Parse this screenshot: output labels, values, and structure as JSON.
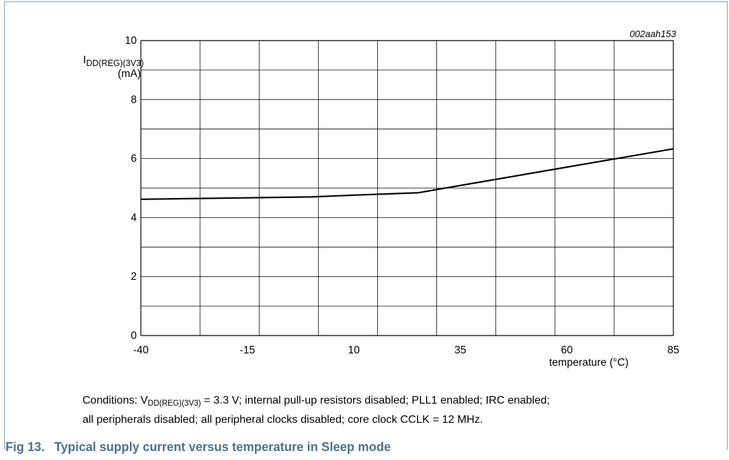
{
  "figure": {
    "number": "Fig 13.",
    "title": "Typical supply current versus temperature in Sleep mode",
    "code": "002aah153"
  },
  "conditions": {
    "prefix": "Conditions: V",
    "sub": "DD(REG)(3V3)",
    "line1_rest": " = 3.3 V; internal pull-up resistors disabled; PLL1 enabled; IRC enabled;",
    "line2": "all peripherals disabled; all peripheral clocks disabled; core clock CCLK = 12 MHz."
  },
  "chart_data": {
    "type": "line",
    "ylabel_main": "I",
    "ylabel_sub": "DD(REG)(3V3)",
    "ylabel_unit": "(mA)",
    "xlabel": "temperature (°C)",
    "xlim": [
      -40,
      85
    ],
    "ylim": [
      0,
      10
    ],
    "x_ticks": [
      "-40",
      "-15",
      "10",
      "35",
      "60",
      "85"
    ],
    "y_ticks": [
      "0",
      "2",
      "4",
      "6",
      "8",
      "10"
    ],
    "grid": true,
    "series": [
      {
        "x": [
          -40,
          -15,
          0,
          10,
          25,
          85
        ],
        "y": [
          4.62,
          4.67,
          4.7,
          4.76,
          4.84,
          6.33
        ]
      }
    ]
  }
}
